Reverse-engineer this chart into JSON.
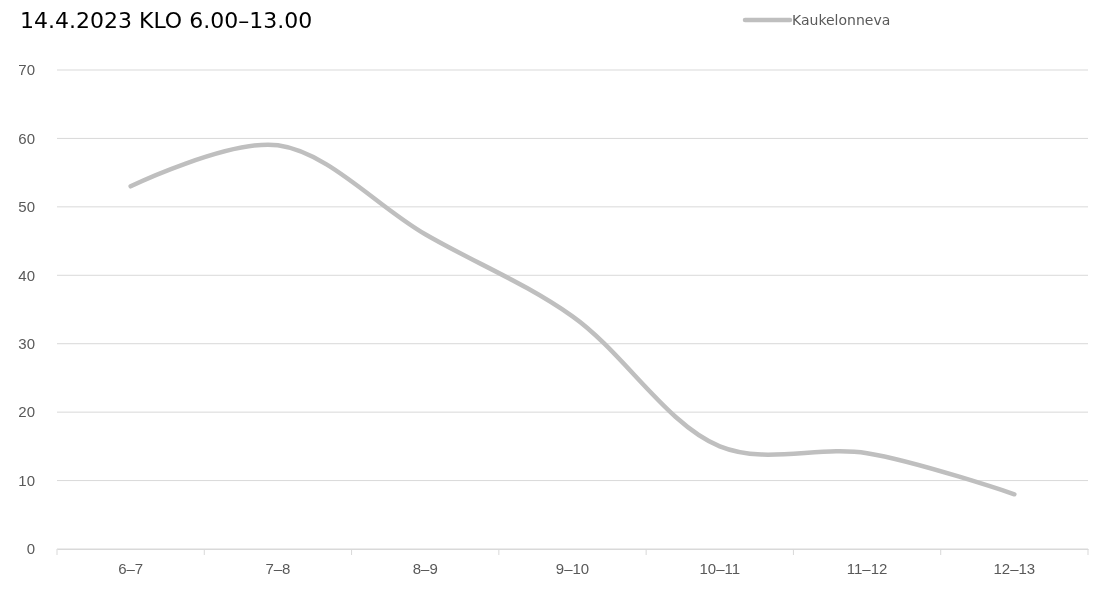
{
  "chart_data": {
    "type": "line",
    "title": "14.4.2023 KLO 6.00–13.00",
    "categories": [
      "6–7",
      "7–8",
      "8–9",
      "9–10",
      "10–11",
      "11–12",
      "12–13"
    ],
    "series": [
      {
        "name": "Kaukelonneva",
        "color": "#bfbfbf",
        "values": [
          53,
          59,
          46,
          34,
          15,
          14,
          8
        ]
      }
    ],
    "ylim": [
      0,
      70
    ],
    "yticks": [
      0,
      10,
      20,
      30,
      40,
      50,
      60,
      70
    ],
    "grid": "y",
    "legend": "top right",
    "marker": "none",
    "line_style": "solid"
  }
}
